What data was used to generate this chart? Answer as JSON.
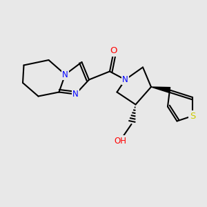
{
  "background_color": "#e8e8e8",
  "bond_color": "#000000",
  "atom_colors": {
    "N": "#0000ff",
    "O": "#ff0000",
    "S": "#cccc00",
    "H": "#808080"
  },
  "bond_width": 1.5,
  "font_size_atom": 9
}
